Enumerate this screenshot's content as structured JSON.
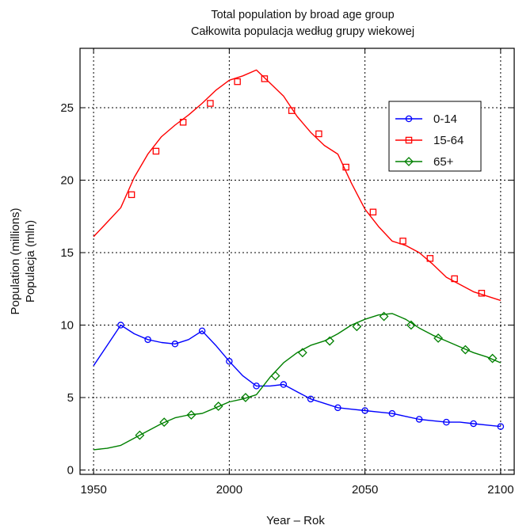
{
  "chart_data": {
    "type": "line",
    "title": [
      "Total population by broad age group",
      "Całkowita populacja według grupy wiekowej"
    ],
    "xlabel": "Year – Rok",
    "ylabel": [
      "Population (millions)",
      "Populacja (mln)"
    ],
    "xlim": [
      1945,
      2105
    ],
    "ylim": [
      -0.3,
      29.1
    ],
    "xticks": [
      1950,
      2000,
      2050,
      2100
    ],
    "yticks": [
      0,
      5,
      10,
      15,
      20,
      25
    ],
    "grid": true,
    "legend_position": "top-right",
    "series": [
      {
        "name": "0-14",
        "color": "#0000ff",
        "marker": "circle",
        "x": [
          1950,
          1955,
          1960,
          1965,
          1970,
          1975,
          1980,
          1985,
          1990,
          1995,
          2000,
          2005,
          2010,
          2015,
          2020,
          2025,
          2030,
          2035,
          2040,
          2045,
          2050,
          2055,
          2060,
          2065,
          2070,
          2075,
          2080,
          2085,
          2090,
          2095,
          2100
        ],
        "y": [
          7.2,
          8.6,
          10.0,
          9.4,
          9.0,
          8.8,
          8.7,
          9.0,
          9.6,
          8.6,
          7.5,
          6.5,
          5.8,
          5.8,
          5.9,
          5.4,
          4.9,
          4.6,
          4.3,
          4.2,
          4.1,
          4.0,
          3.9,
          3.7,
          3.5,
          3.4,
          3.3,
          3.3,
          3.2,
          3.1,
          3.0
        ],
        "marker_x": [
          1960,
          1970,
          1980,
          1990,
          2000,
          2010,
          2020,
          2030,
          2040,
          2050,
          2060,
          2070,
          2080,
          2090,
          2100
        ],
        "marker_y": [
          10.0,
          9.0,
          8.7,
          9.6,
          7.5,
          5.8,
          5.9,
          4.9,
          4.3,
          4.1,
          3.9,
          3.5,
          3.3,
          3.2,
          3.0
        ]
      },
      {
        "name": "15-64",
        "color": "#ff0000",
        "marker": "square",
        "x": [
          1950,
          1955,
          1960,
          1965,
          1970,
          1975,
          1980,
          1985,
          1990,
          1995,
          2000,
          2005,
          2010,
          2015,
          2020,
          2025,
          2030,
          2035,
          2040,
          2045,
          2050,
          2055,
          2060,
          2065,
          2070,
          2075,
          2080,
          2085,
          2090,
          2095,
          2100
        ],
        "y": [
          16.1,
          17.1,
          18.1,
          20.2,
          21.8,
          23.0,
          23.8,
          24.5,
          25.3,
          26.2,
          26.9,
          27.2,
          27.6,
          26.7,
          25.8,
          24.4,
          23.3,
          22.4,
          21.8,
          19.8,
          18.0,
          16.8,
          15.8,
          15.5,
          15.0,
          14.2,
          13.3,
          12.8,
          12.3,
          12.0,
          11.7
        ],
        "marker_x": [
          1964,
          1973,
          1983,
          1993,
          2003,
          2013,
          2023,
          2033,
          2043,
          2053,
          2064,
          2074,
          2083,
          2093
        ],
        "marker_y": [
          19.0,
          22.0,
          24.0,
          25.3,
          26.8,
          27.0,
          24.8,
          23.2,
          20.9,
          17.8,
          15.8,
          14.6,
          13.2,
          12.2
        ]
      },
      {
        "name": "65+",
        "color": "#008000",
        "marker": "diamond",
        "x": [
          1950,
          1955,
          1960,
          1965,
          1970,
          1975,
          1980,
          1985,
          1990,
          1995,
          2000,
          2005,
          2010,
          2015,
          2020,
          2025,
          2030,
          2035,
          2040,
          2045,
          2050,
          2055,
          2060,
          2065,
          2070,
          2075,
          2080,
          2085,
          2090,
          2095,
          2100
        ],
        "y": [
          1.4,
          1.5,
          1.7,
          2.2,
          2.7,
          3.2,
          3.6,
          3.8,
          3.9,
          4.3,
          4.7,
          4.9,
          5.2,
          6.4,
          7.4,
          8.1,
          8.6,
          8.9,
          9.4,
          10.0,
          10.4,
          10.7,
          10.8,
          10.4,
          9.8,
          9.3,
          8.9,
          8.5,
          8.1,
          7.8,
          7.4
        ],
        "marker_x": [
          1967,
          1976,
          1986,
          1996,
          2006,
          2017,
          2027,
          2037,
          2047,
          2057,
          2067,
          2077,
          2087,
          2097
        ],
        "marker_y": [
          2.4,
          3.3,
          3.8,
          4.4,
          5.0,
          6.5,
          8.1,
          8.9,
          9.9,
          10.6,
          10.0,
          9.1,
          8.3,
          7.7
        ]
      }
    ]
  }
}
